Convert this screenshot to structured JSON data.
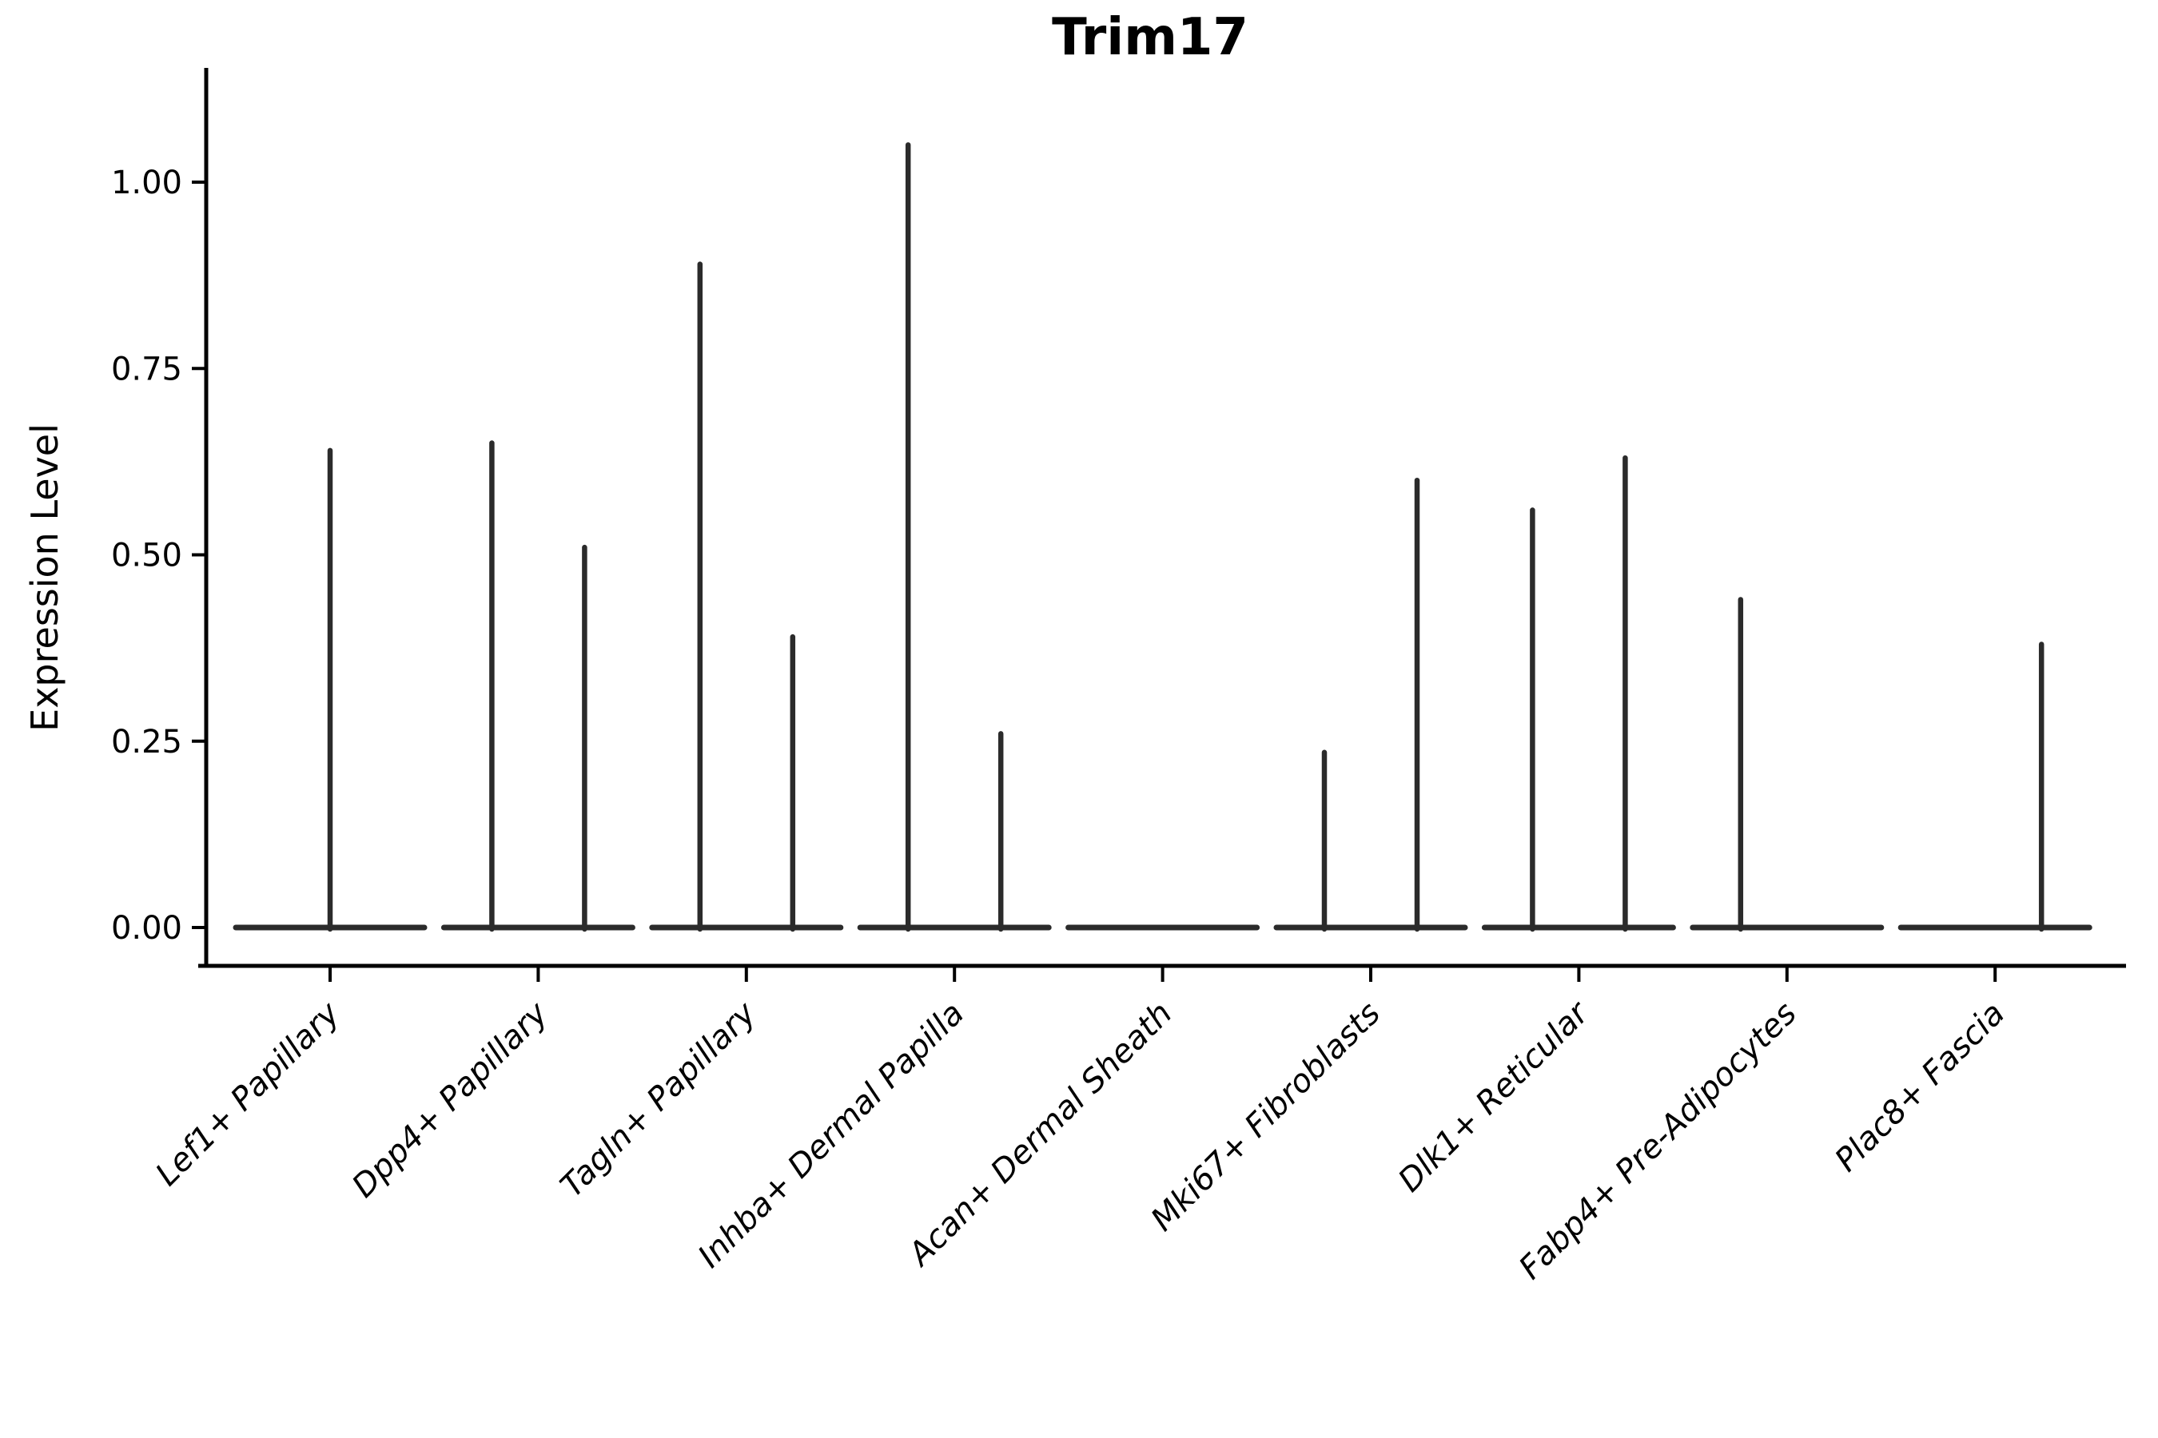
{
  "chart_data": {
    "type": "violin",
    "title": "Trim17",
    "ylabel": "Expression Level",
    "xlabel": "",
    "grid": false,
    "legend": "none",
    "ylim": [
      -0.05,
      1.15
    ],
    "yticks": [
      0.0,
      0.25,
      0.5,
      0.75,
      1.0
    ],
    "ytick_labels": [
      "0.00",
      "0.25",
      "0.50",
      "0.75",
      "1.00"
    ],
    "categories": [
      "Lef1+ Papillary",
      "Dpp4+ Papillary",
      "Tagln+ Papillary",
      "Inhba+ Dermal Papilla",
      "Acan+ Dermal Sheath",
      "Mki67+ Fibroblasts",
      "Dlk1+ Reticular",
      "Fabp4+ Pre-Adipocytes",
      "Plac8+ Fascia"
    ],
    "violins": [
      {
        "category": "Lef1+ Papillary",
        "baseline": 0,
        "spikes": [
          {
            "position": "center",
            "max": 0.64
          }
        ]
      },
      {
        "category": "Dpp4+ Papillary",
        "baseline": 0,
        "spikes": [
          {
            "position": "left",
            "max": 0.65
          },
          {
            "position": "right",
            "max": 0.51
          }
        ]
      },
      {
        "category": "Tagln+ Papillary",
        "baseline": 0,
        "spikes": [
          {
            "position": "left",
            "max": 0.89
          },
          {
            "position": "right",
            "max": 0.39
          }
        ]
      },
      {
        "category": "Inhba+ Dermal Papilla",
        "baseline": 0,
        "spikes": [
          {
            "position": "left",
            "max": 1.05
          },
          {
            "position": "right",
            "max": 0.26
          }
        ]
      },
      {
        "category": "Acan+ Dermal Sheath",
        "baseline": 0,
        "spikes": []
      },
      {
        "category": "Mki67+ Fibroblasts",
        "baseline": 0,
        "spikes": [
          {
            "position": "left",
            "max": 0.235
          },
          {
            "position": "right",
            "max": 0.6
          }
        ]
      },
      {
        "category": "Dlk1+ Reticular",
        "baseline": 0,
        "spikes": [
          {
            "position": "left",
            "max": 0.56
          },
          {
            "position": "right",
            "max": 0.63
          }
        ]
      },
      {
        "category": "Fabp4+ Pre-Adipocytes",
        "baseline": 0,
        "spikes": [
          {
            "position": "left",
            "max": 0.44
          }
        ]
      },
      {
        "category": "Plac8+ Fascia",
        "baseline": 0,
        "spikes": [
          {
            "position": "right",
            "max": 0.38
          }
        ]
      }
    ],
    "colors": {
      "violin_line": "#2b2b2b",
      "axis": "#000000",
      "text": "#000000",
      "background": "#ffffff"
    }
  }
}
